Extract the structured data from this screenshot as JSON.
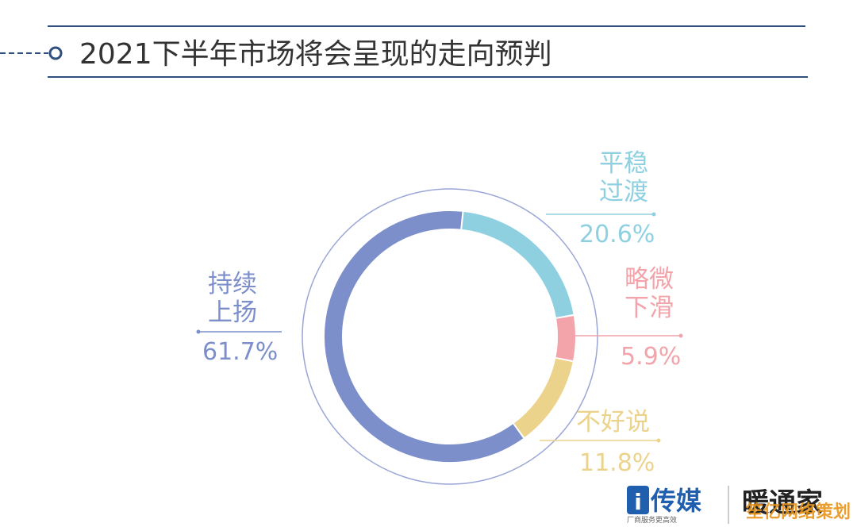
{
  "chart_data": {
    "type": "donut",
    "title": "2021下半年市场将会呈现的走向预判",
    "categories": [
      "平稳过渡",
      "略微下滑",
      "不好说",
      "持续上扬"
    ],
    "values": [
      20.6,
      5.9,
      11.8,
      61.7
    ],
    "value_labels": [
      "20.6%",
      "5.9%",
      "11.8%",
      "61.7%"
    ],
    "colors": [
      "#8fd0e0",
      "#f2a4aa",
      "#ecd38c",
      "#7c8fca"
    ]
  },
  "branding": {
    "logo_a": "传媒",
    "logo_a_tagline": "厂商服务更高效",
    "logo_b": "暖通家",
    "watermark": "笙亿网络策划"
  }
}
